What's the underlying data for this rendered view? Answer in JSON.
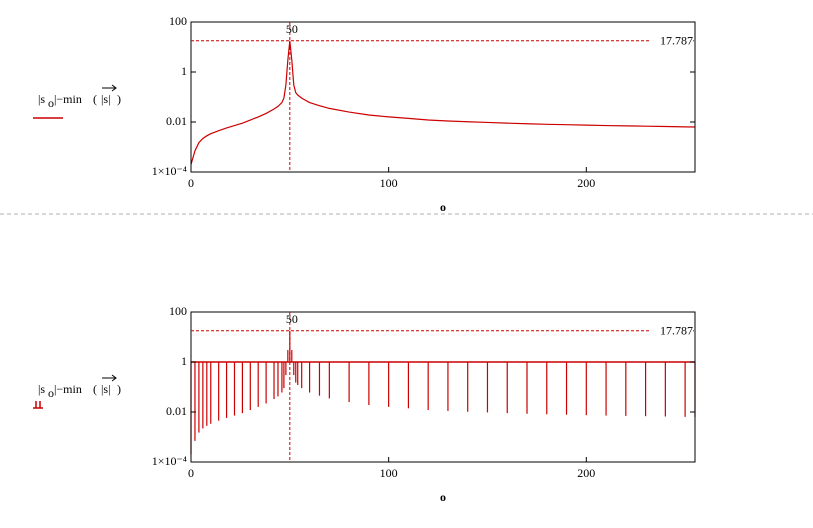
{
  "chart_data": [
    {
      "type": "line",
      "color": "#cc0000",
      "y_label": [
        "|s",
        "o",
        "|−min",
        "(",
        "|s|",
        ")"
      ],
      "x_label": "o",
      "x": [
        0,
        2,
        4,
        6,
        8,
        10,
        14,
        18,
        22,
        26,
        30,
        34,
        38,
        42,
        44,
        46,
        47,
        48,
        49,
        50,
        51,
        52,
        53,
        54,
        56,
        60,
        65,
        70,
        80,
        90,
        100,
        110,
        120,
        130,
        140,
        150,
        160,
        170,
        180,
        190,
        200,
        210,
        220,
        230,
        240,
        250,
        255
      ],
      "values": [
        0.0002,
        0.0007,
        0.0015,
        0.0022,
        0.0028,
        0.0034,
        0.0045,
        0.0058,
        0.0072,
        0.009,
        0.012,
        0.016,
        0.022,
        0.033,
        0.042,
        0.06,
        0.09,
        0.3,
        3,
        17.787,
        3,
        0.3,
        0.15,
        0.12,
        0.09,
        0.06,
        0.045,
        0.035,
        0.025,
        0.019,
        0.016,
        0.014,
        0.012,
        0.011,
        0.0102,
        0.0096,
        0.009,
        0.0085,
        0.0081,
        0.0078,
        0.0075,
        0.0072,
        0.007,
        0.0068,
        0.0066,
        0.0064,
        0.0063
      ],
      "xlim": [
        0,
        255
      ],
      "xticks": [
        0,
        100,
        200
      ],
      "ylim": [
        0.0001,
        100
      ],
      "ylog": true,
      "yticks": [
        100,
        1,
        0.01,
        {
          "value": 0.0001,
          "label": "1×10⁻⁴"
        }
      ],
      "marker_x": 50,
      "marker_y": 17.787
    },
    {
      "type": "stem",
      "color": "#cc0000",
      "y_label": [
        "|s",
        "o",
        "|−min",
        "(",
        "|s|",
        ")"
      ],
      "x_label": "o",
      "x": [
        0,
        2,
        4,
        6,
        8,
        10,
        14,
        18,
        22,
        26,
        30,
        34,
        38,
        42,
        44,
        46,
        47,
        48,
        49,
        50,
        51,
        52,
        53,
        54,
        56,
        60,
        65,
        70,
        80,
        90,
        100,
        110,
        120,
        130,
        140,
        150,
        160,
        170,
        180,
        190,
        200,
        210,
        220,
        230,
        240,
        250,
        255
      ],
      "values": [
        0.0002,
        0.0007,
        0.0015,
        0.0022,
        0.0028,
        0.0034,
        0.0045,
        0.0058,
        0.0072,
        0.009,
        0.012,
        0.016,
        0.022,
        0.033,
        0.042,
        0.06,
        0.09,
        0.3,
        3,
        17.787,
        3,
        0.3,
        0.15,
        0.12,
        0.09,
        0.06,
        0.045,
        0.035,
        0.025,
        0.019,
        0.016,
        0.014,
        0.012,
        0.011,
        0.0102,
        0.0096,
        0.009,
        0.0085,
        0.0081,
        0.0078,
        0.0075,
        0.0072,
        0.007,
        0.0068,
        0.0066,
        0.0064,
        0.0063
      ],
      "xlim": [
        0,
        255
      ],
      "xticks": [
        0,
        100,
        200
      ],
      "ylim": [
        0.0001,
        100
      ],
      "ylog": true,
      "yticks": [
        100,
        1,
        0.01,
        {
          "value": 0.0001,
          "label": "1×10⁻⁴"
        }
      ],
      "marker_x": 50,
      "marker_y": 17.787
    }
  ]
}
